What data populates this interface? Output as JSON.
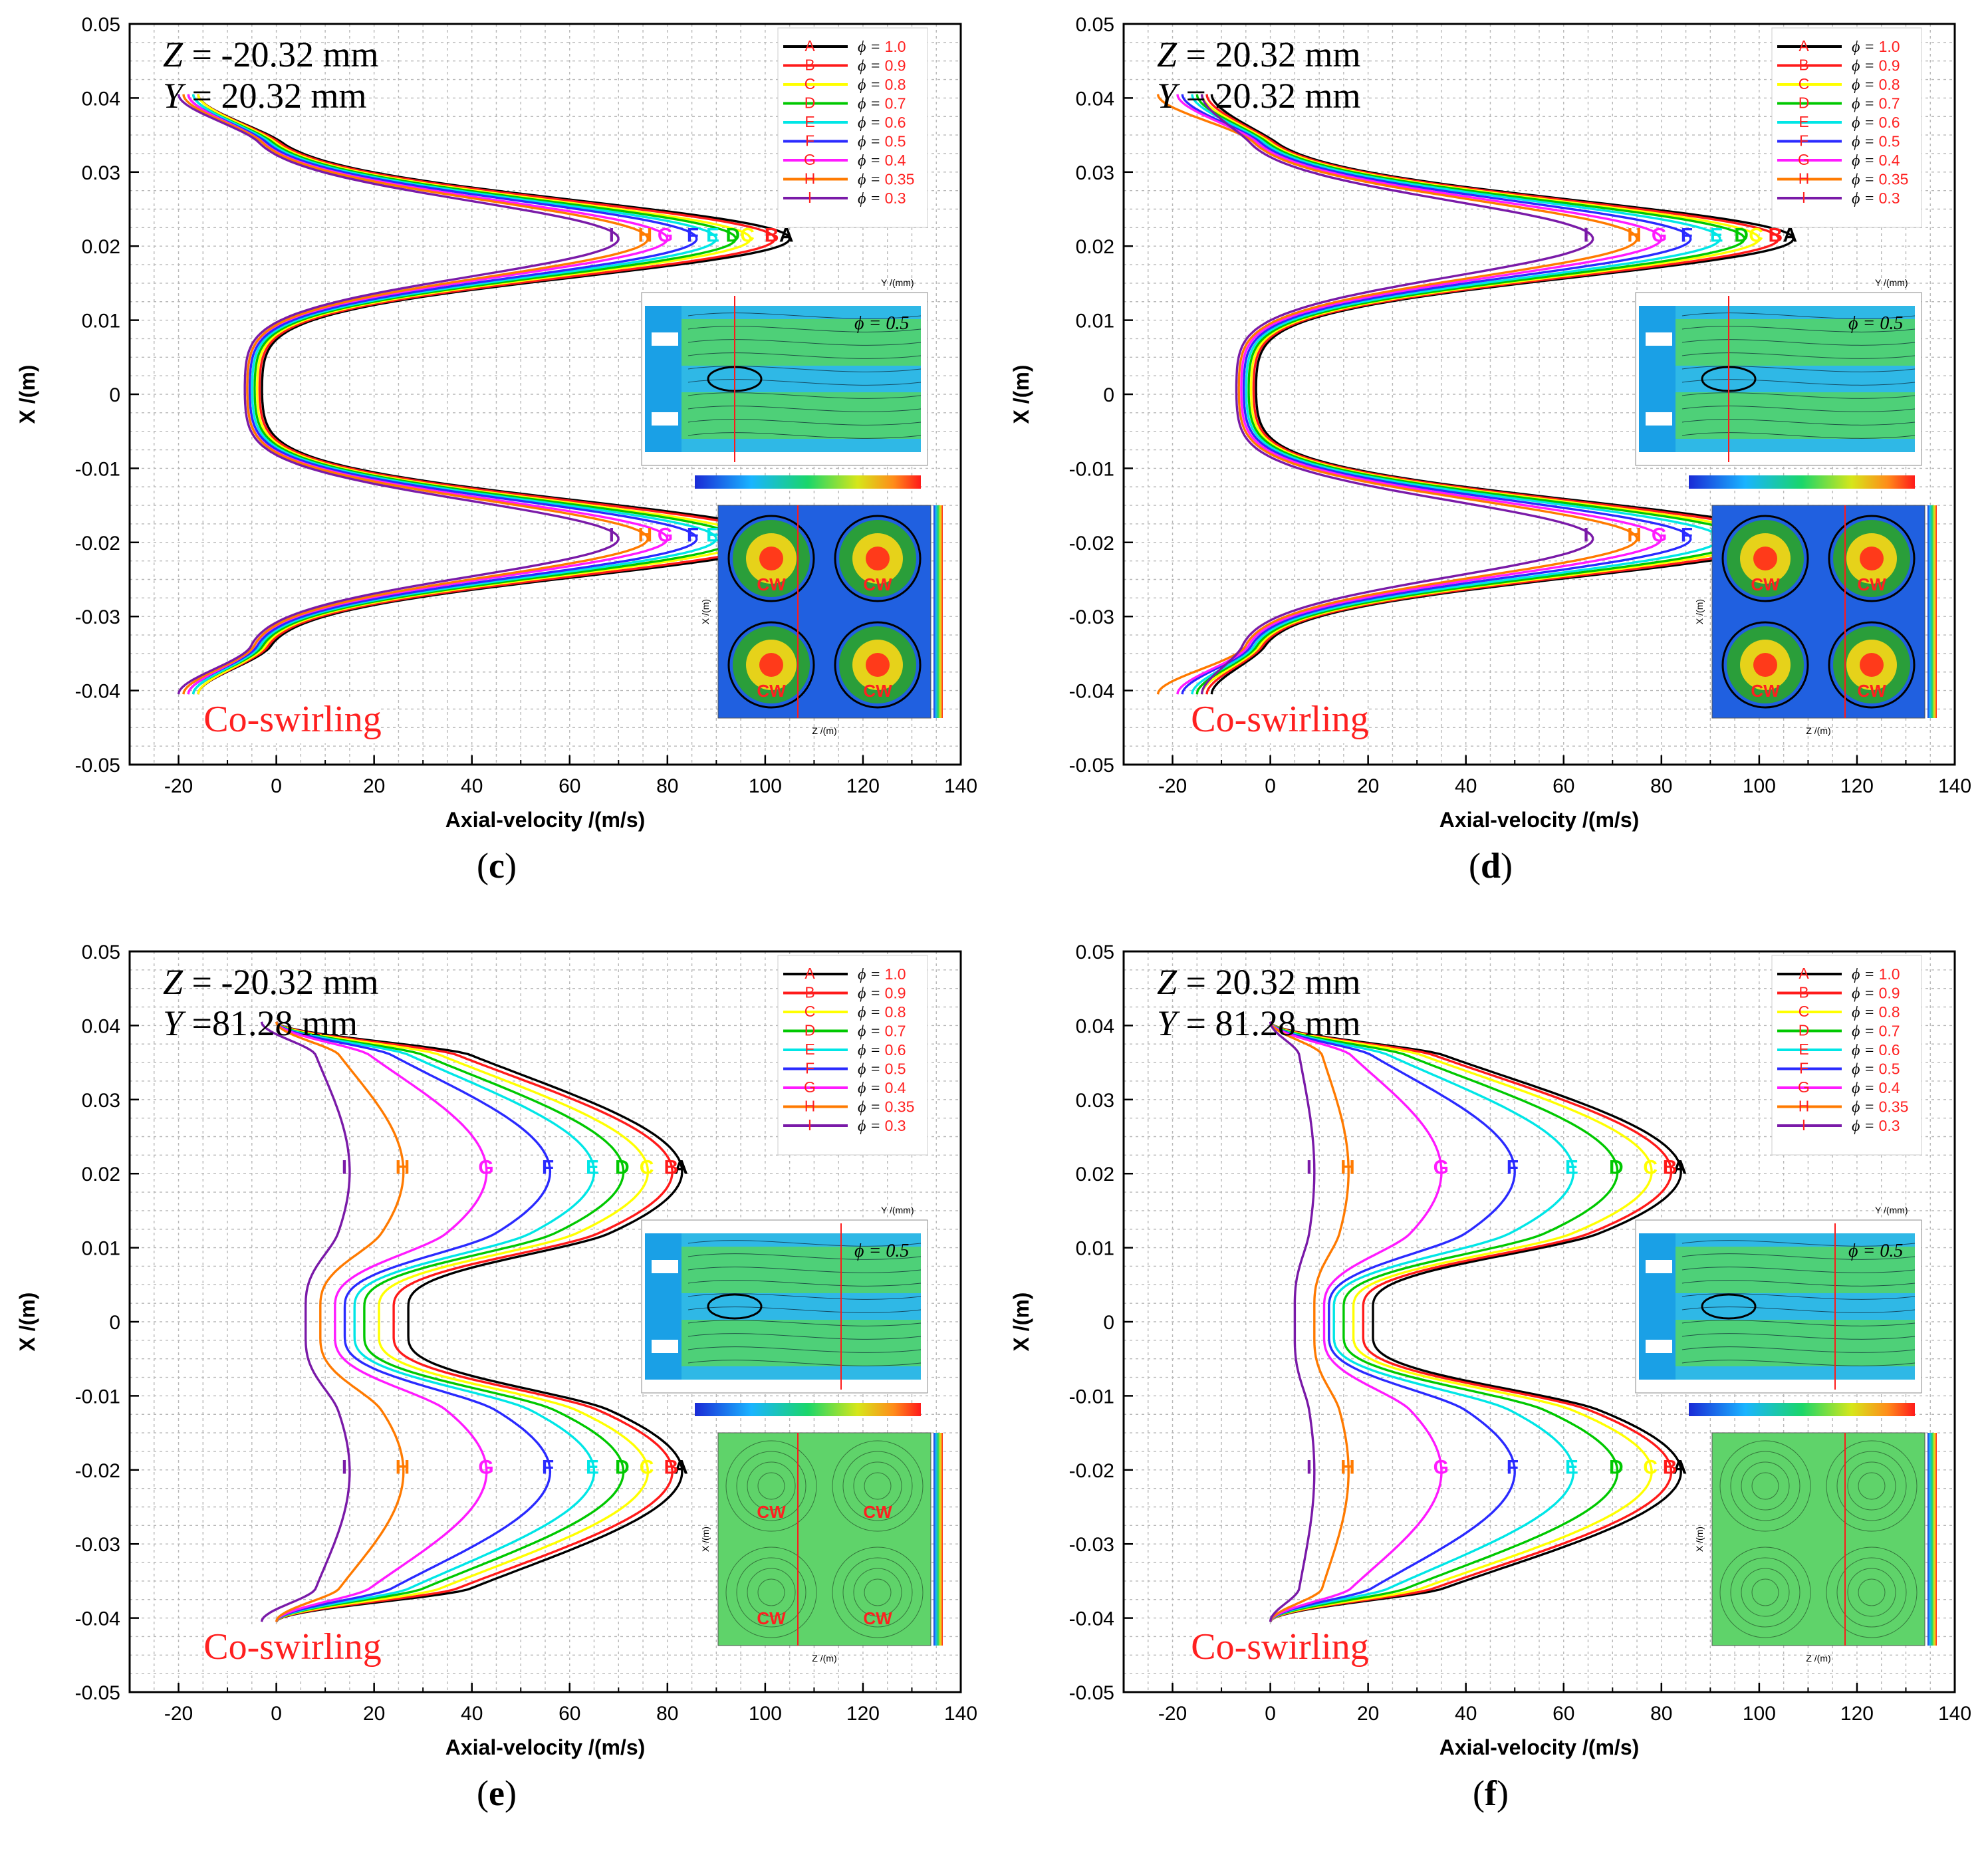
{
  "legend": {
    "series": [
      {
        "label": "1.0",
        "color": "#000000",
        "symbol": "A"
      },
      {
        "label": "0.9",
        "color": "#ff1a1a",
        "symbol": "B"
      },
      {
        "label": "0.8",
        "color": "#ffff00",
        "symbol": "C"
      },
      {
        "label": "0.7",
        "color": "#00c800",
        "symbol": "D"
      },
      {
        "label": "0.6",
        "color": "#00e6e6",
        "symbol": "E"
      },
      {
        "label": "0.5",
        "color": "#2a2aff",
        "symbol": "F"
      },
      {
        "label": "0.4",
        "color": "#ff1aff",
        "symbol": "G"
      },
      {
        "label": "0.35",
        "color": "#ff7a00",
        "symbol": "H"
      },
      {
        "label": "0.3",
        "color": "#7a1aa8",
        "symbol": "I"
      }
    ],
    "prefix": "ϕ = "
  },
  "inset": {
    "phi_label": "ϕ = 0.5",
    "y_axis_label": "Y /(mm)",
    "cw_label": "CW",
    "z_axis_label": "Z /(m)",
    "x_axis_label": "X /(m)"
  },
  "chart_data": [
    {
      "type": "line",
      "panel": "c",
      "caption_letter": "c",
      "title_lines": [
        "Z = -20.32 mm",
        "Y = 20.32 mm"
      ],
      "z_label": "Z",
      "z_value": "= -20.32 mm",
      "y_label": "Y",
      "y_value": "= 20.32 mm",
      "annotation": "Co-swirling",
      "xlabel": "Axial-velocity /(m/s)",
      "ylabel": "X /(m)",
      "xlim": [
        -30,
        140
      ],
      "ylim": [
        -0.05,
        0.05
      ],
      "xticks": [
        "-20",
        "0",
        "20",
        "40",
        "60",
        "80",
        "100",
        "120",
        "140"
      ],
      "yticks": [
        "0.05",
        "0.04",
        "0.03",
        "0.02",
        "0.01",
        "0",
        "-0.01",
        "-0.02",
        "-0.03",
        "-0.04",
        "-0.05"
      ],
      "profile": "near",
      "inset_variant": "core",
      "series": [
        {
          "name": "ϕ = 1.0",
          "peak": 105,
          "trough": -3,
          "tip": -16
        },
        {
          "name": "ϕ = 0.9",
          "peak": 102,
          "trough": -3.5,
          "tip": -16
        },
        {
          "name": "ϕ = 0.8",
          "peak": 97,
          "trough": -4,
          "tip": -16
        },
        {
          "name": "ϕ = 0.7",
          "peak": 94,
          "trough": -4.5,
          "tip": -17
        },
        {
          "name": "ϕ = 0.6",
          "peak": 90,
          "trough": -5,
          "tip": -17
        },
        {
          "name": "ϕ = 0.5",
          "peak": 86,
          "trough": -5.5,
          "tip": -18
        },
        {
          "name": "ϕ = 0.4",
          "peak": 80,
          "trough": -6,
          "tip": -18
        },
        {
          "name": "ϕ = 0.35",
          "peak": 76,
          "trough": -6,
          "tip": -19
        },
        {
          "name": "ϕ = 0.3",
          "peak": 70,
          "trough": -6.5,
          "tip": -20
        }
      ]
    },
    {
      "type": "line",
      "panel": "d",
      "caption_letter": "d",
      "title_lines": [
        "Z = 20.32 mm",
        "Y = 20.32 mm"
      ],
      "z_label": "Z",
      "z_value": "= 20.32 mm",
      "y_label": "Y",
      "y_value": "= 20.32 mm",
      "annotation": "Co-swirling",
      "xlabel": "Axial-velocity /(m/s)",
      "ylabel": "X /(m)",
      "xlim": [
        -30,
        140
      ],
      "ylim": [
        -0.05,
        0.05
      ],
      "xticks": [
        "-20",
        "0",
        "20",
        "40",
        "60",
        "80",
        "100",
        "120",
        "140"
      ],
      "yticks": [
        "0.05",
        "0.04",
        "0.03",
        "0.02",
        "0.01",
        "0",
        "-0.01",
        "-0.02",
        "-0.03",
        "-0.04",
        "-0.05"
      ],
      "profile": "near",
      "inset_variant": "core",
      "series": [
        {
          "name": "ϕ = 1.0",
          "peak": 107,
          "trough": -3,
          "tip": -12
        },
        {
          "name": "ϕ = 0.9",
          "peak": 104,
          "trough": -3.5,
          "tip": -13
        },
        {
          "name": "ϕ = 0.8",
          "peak": 100,
          "trough": -4,
          "tip": -14
        },
        {
          "name": "ϕ = 0.7",
          "peak": 97,
          "trough": -4.5,
          "tip": -15
        },
        {
          "name": "ϕ = 0.6",
          "peak": 92,
          "trough": -5,
          "tip": -16
        },
        {
          "name": "ϕ = 0.5",
          "peak": 86,
          "trough": -5.5,
          "tip": -18
        },
        {
          "name": "ϕ = 0.4",
          "peak": 80,
          "trough": -6,
          "tip": -19
        },
        {
          "name": "ϕ = 0.35",
          "peak": 75,
          "trough": -6.5,
          "tip": -23
        },
        {
          "name": "ϕ = 0.3",
          "peak": 66,
          "trough": -7,
          "tip": -14
        }
      ]
    },
    {
      "type": "line",
      "panel": "e",
      "caption_letter": "e",
      "title_lines": [
        "Z = -20.32 mm",
        "Y =81.28 mm"
      ],
      "z_label": "Z",
      "z_value": "= -20.32 mm",
      "y_label": "Y",
      "y_value": "=81.28 mm",
      "annotation": "Co-swirling",
      "xlabel": "Axial-velocity /(m/s)",
      "ylabel": "X /(m)",
      "xlim": [
        -30,
        140
      ],
      "ylim": [
        -0.05,
        0.05
      ],
      "xticks": [
        "-20",
        "0",
        "20",
        "40",
        "60",
        "80",
        "100",
        "120",
        "140"
      ],
      "yticks": [
        "0.05",
        "0.04",
        "0.03",
        "0.02",
        "0.01",
        "0",
        "-0.01",
        "-0.02",
        "-0.03",
        "-0.04",
        "-0.05"
      ],
      "profile": "far",
      "inset_variant": "diffuse",
      "series": [
        {
          "name": "ϕ = 1.0",
          "peak": 83,
          "trough": 27,
          "tip": 0
        },
        {
          "name": "ϕ = 0.9",
          "peak": 81,
          "trough": 24,
          "tip": 0
        },
        {
          "name": "ϕ = 0.8",
          "peak": 76,
          "trough": 21,
          "tip": 0
        },
        {
          "name": "ϕ = 0.7",
          "peak": 71,
          "trough": 18,
          "tip": 0
        },
        {
          "name": "ϕ = 0.6",
          "peak": 65,
          "trough": 16,
          "tip": 0
        },
        {
          "name": "ϕ = 0.5",
          "peak": 56,
          "trough": 14,
          "tip": 0
        },
        {
          "name": "ϕ = 0.4",
          "peak": 43,
          "trough": 12,
          "tip": 0
        },
        {
          "name": "ϕ = 0.35",
          "peak": 26,
          "trough": 9,
          "tip": 0
        },
        {
          "name": "ϕ = 0.3",
          "peak": 15,
          "trough": 6,
          "tip": -3
        }
      ]
    },
    {
      "type": "line",
      "panel": "f",
      "caption_letter": "f",
      "title_lines": [
        "Z = 20.32 mm",
        "Y = 81.28 mm"
      ],
      "z_label": "Z",
      "z_value": "= 20.32 mm",
      "y_label": "Y",
      "y_value": "= 81.28 mm",
      "annotation": "Co-swirling",
      "xlabel": "Axial-velocity /(m/s)",
      "ylabel": "X /(m)",
      "xlim": [
        -30,
        140
      ],
      "ylim": [
        -0.05,
        0.05
      ],
      "xticks": [
        "-20",
        "0",
        "20",
        "40",
        "60",
        "80",
        "100",
        "120",
        "140"
      ],
      "yticks": [
        "0.05",
        "0.04",
        "0.03",
        "0.02",
        "0.01",
        "0",
        "-0.01",
        "-0.02",
        "-0.03",
        "-0.04",
        "-0.05"
      ],
      "profile": "far",
      "inset_variant": "diffuse",
      "series": [
        {
          "name": "ϕ = 1.0",
          "peak": 84,
          "trough": 21,
          "tip": 0
        },
        {
          "name": "ϕ = 0.9",
          "peak": 82,
          "trough": 19,
          "tip": 0
        },
        {
          "name": "ϕ = 0.8",
          "peak": 78,
          "trough": 17,
          "tip": 0
        },
        {
          "name": "ϕ = 0.7",
          "peak": 71,
          "trough": 15,
          "tip": 0
        },
        {
          "name": "ϕ = 0.6",
          "peak": 62,
          "trough": 13,
          "tip": 0
        },
        {
          "name": "ϕ = 0.5",
          "peak": 50,
          "trough": 12,
          "tip": 0
        },
        {
          "name": "ϕ = 0.4",
          "peak": 35,
          "trough": 11,
          "tip": 0
        },
        {
          "name": "ϕ = 0.35",
          "peak": 16,
          "trough": 9,
          "tip": 0
        },
        {
          "name": "ϕ = 0.3",
          "peak": 9,
          "trough": 5,
          "tip": 0
        }
      ]
    }
  ]
}
